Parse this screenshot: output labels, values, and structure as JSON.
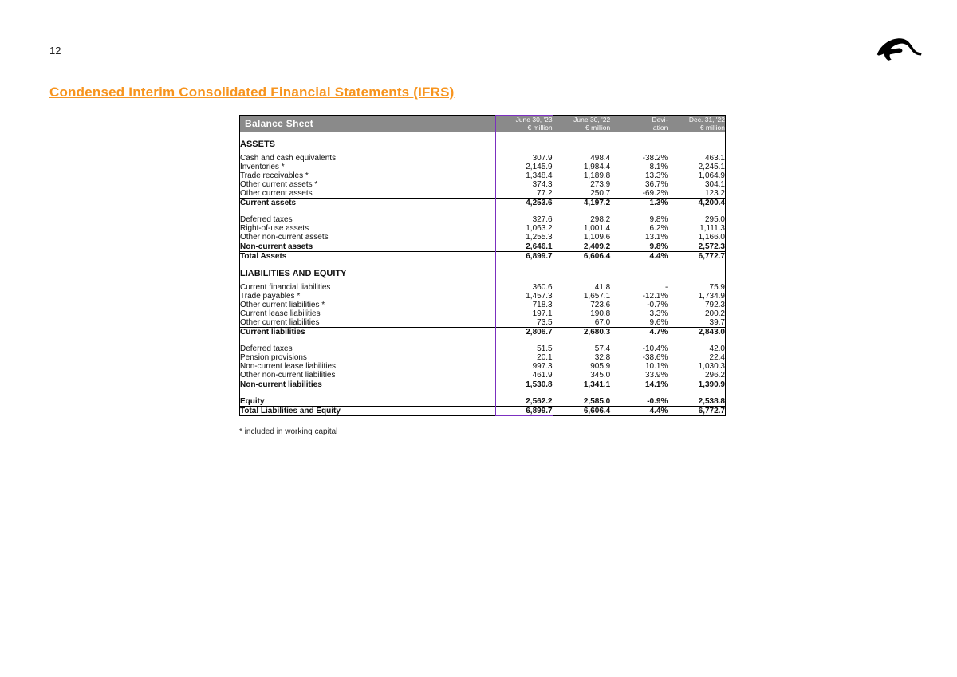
{
  "page_number": "12",
  "title": "Condensed Interim Consolidated Financial Statements (IFRS)",
  "balance_sheet_label": "Balance Sheet",
  "columns": {
    "c1_top": "June 30, '23",
    "c1_bot": "€ million",
    "c2_top": "June 30, '22",
    "c2_bot": "€ million",
    "c3_top": "Devi-",
    "c3_bot": "ation",
    "c4_top": "Dec. 31, '22",
    "c4_bot": "€ million"
  },
  "sections": {
    "assets": "ASSETS",
    "liab": "LIABILITIES AND EQUITY"
  },
  "rows": {
    "cash": {
      "label": "Cash and cash equivalents",
      "c1": "307.9",
      "c2": "498.4",
      "c3": "-38.2%",
      "c4": "463.1"
    },
    "inv": {
      "label": "Inventories *",
      "c1": "2,145.9",
      "c2": "1,984.4",
      "c3": "8.1%",
      "c4": "2,245.1"
    },
    "trec": {
      "label": "Trade receivables *",
      "c1": "1,348.4",
      "c2": "1,189.8",
      "c3": "13.3%",
      "c4": "1,064.9"
    },
    "oca1": {
      "label": "Other current assets *",
      "c1": "374.3",
      "c2": "273.9",
      "c3": "36.7%",
      "c4": "304.1"
    },
    "oca2": {
      "label": "Other current assets",
      "c1": "77.2",
      "c2": "250.7",
      "c3": "-69.2%",
      "c4": "123.2"
    },
    "ca": {
      "label": "Current assets",
      "c1": "4,253.6",
      "c2": "4,197.2",
      "c3": "1.3%",
      "c4": "4,200.4"
    },
    "dta": {
      "label": "Deferred taxes",
      "c1": "327.6",
      "c2": "298.2",
      "c3": "9.8%",
      "c4": "295.0"
    },
    "rou": {
      "label": "Right-of-use assets",
      "c1": "1,063.2",
      "c2": "1,001.4",
      "c3": "6.2%",
      "c4": "1,111.3"
    },
    "onca": {
      "label": "Other non-current assets",
      "c1": "1,255.3",
      "c2": "1,109.6",
      "c3": "13.1%",
      "c4": "1,166.0"
    },
    "nca": {
      "label": "Non-current assets",
      "c1": "2,646.1",
      "c2": "2,409.2",
      "c3": "9.8%",
      "c4": "2,572.3"
    },
    "ta": {
      "label": "Total Assets",
      "c1": "6,899.7",
      "c2": "6,606.4",
      "c3": "4.4%",
      "c4": "6,772.7"
    },
    "cfl": {
      "label": "Current financial liabilities",
      "c1": "360.6",
      "c2": "41.8",
      "c3": "-",
      "c4": "75.9"
    },
    "tp": {
      "label": "Trade payables *",
      "c1": "1,457.3",
      "c2": "1,657.1",
      "c3": "-12.1%",
      "c4": "1,734.9"
    },
    "ocl1": {
      "label": "Other current liabilities *",
      "c1": "718.3",
      "c2": "723.6",
      "c3": "-0.7%",
      "c4": "792.3"
    },
    "cll": {
      "label": "Current lease liabilities",
      "c1": "197.1",
      "c2": "190.8",
      "c3": "3.3%",
      "c4": "200.2"
    },
    "ocl2": {
      "label": "Other current liabilities",
      "c1": "73.5",
      "c2": "67.0",
      "c3": "9.6%",
      "c4": "39.7"
    },
    "cl": {
      "label": "Current liabilities",
      "c1": "2,806.7",
      "c2": "2,680.3",
      "c3": "4.7%",
      "c4": "2,843.0"
    },
    "dtl": {
      "label": "Deferred taxes",
      "c1": "51.5",
      "c2": "57.4",
      "c3": "-10.4%",
      "c4": "42.0"
    },
    "pp": {
      "label": "Pension provisions",
      "c1": "20.1",
      "c2": "32.8",
      "c3": "-38.6%",
      "c4": "22.4"
    },
    "ncll": {
      "label": "Non-current lease liabilities",
      "c1": "997.3",
      "c2": "905.9",
      "c3": "10.1%",
      "c4": "1,030.3"
    },
    "oncl": {
      "label": "Other non-current liabilities",
      "c1": "461.9",
      "c2": "345.0",
      "c3": "33.9%",
      "c4": "296.2"
    },
    "ncl": {
      "label": "Non-current liabilities",
      "c1": "1,530.8",
      "c2": "1,341.1",
      "c3": "14.1%",
      "c4": "1,390.9"
    },
    "eq": {
      "label": "Equity",
      "c1": "2,562.2",
      "c2": "2,585.0",
      "c3": "-0.9%",
      "c4": "2,538.8"
    },
    "tle": {
      "label": "Total Liabilities and Equity",
      "c1": "6,899.7",
      "c2": "6,606.4",
      "c3": "4.4%",
      "c4": "6,772.7"
    }
  },
  "footnote": "* included in working capital",
  "colors": {
    "accent": "#f7941e",
    "header_bg": "#8a8a8a",
    "highlight_border": "#7b2fbf",
    "text": "#111111",
    "logo": "#000000"
  }
}
